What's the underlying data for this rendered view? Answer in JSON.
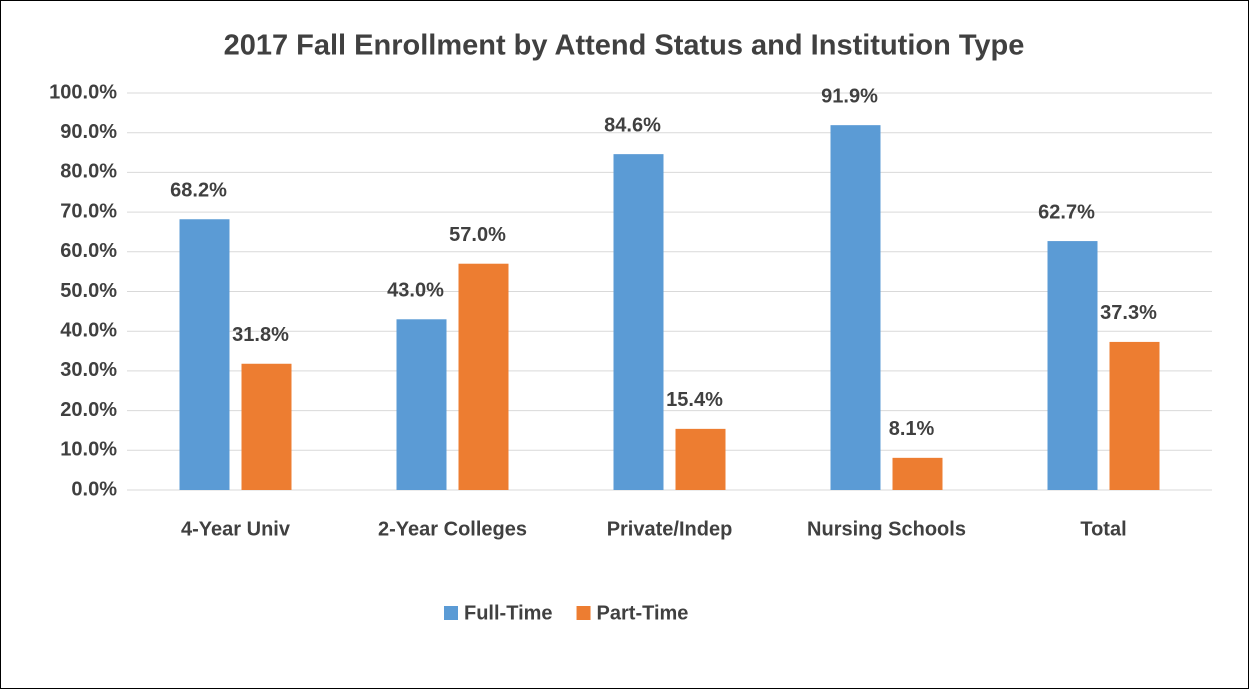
{
  "chart_data": {
    "type": "bar",
    "title": "2017 Fall Enrollment by Attend Status and Institution Type",
    "categories": [
      "4-Year Univ",
      "2-Year Colleges",
      "Private/Indep",
      "Nursing Schools",
      "Total"
    ],
    "series": [
      {
        "name": "Full-Time",
        "color": "#5b9bd5",
        "values": [
          68.2,
          43.0,
          84.6,
          91.9,
          62.7
        ],
        "value_labels": [
          "68.2%",
          "43.0%",
          "84.6%",
          "91.9%",
          "62.7%"
        ]
      },
      {
        "name": "Part-Time",
        "color": "#ed7d31",
        "values": [
          31.8,
          57.0,
          15.4,
          8.1,
          37.3
        ],
        "value_labels": [
          "31.8%",
          "57.0%",
          "15.4%",
          "8.1%",
          "37.3%"
        ]
      }
    ],
    "ylim": [
      0,
      100
    ],
    "yticks": [
      {
        "value": 0,
        "label": "0.0%"
      },
      {
        "value": 10,
        "label": "10.0%"
      },
      {
        "value": 20,
        "label": "20.0%"
      },
      {
        "value": 30,
        "label": "30.0%"
      },
      {
        "value": 40,
        "label": "40.0%"
      },
      {
        "value": 50,
        "label": "50.0%"
      },
      {
        "value": 60,
        "label": "60.0%"
      },
      {
        "value": 70,
        "label": "70.0%"
      },
      {
        "value": 80,
        "label": "80.0%"
      },
      {
        "value": 90,
        "label": "90.0%"
      },
      {
        "value": 100,
        "label": "100.0%"
      }
    ],
    "grid": true,
    "legend": "bottom"
  }
}
